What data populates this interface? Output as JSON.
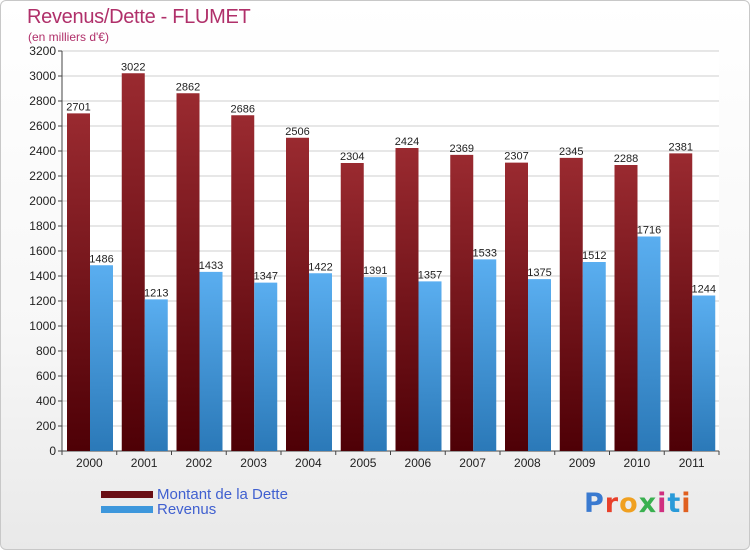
{
  "title": "Revenus/Dette - FLUMET",
  "subtitle": "(en milliers d'€)",
  "logo": {
    "text": "Proxiti",
    "colors": [
      "#3a7ad0",
      "#e8402a",
      "#f0a020",
      "#3ab050",
      "#d03080",
      "#2a9ad8",
      "#e06020"
    ]
  },
  "colors": {
    "dette": "#6a0e14",
    "revenus": "#3d97dc"
  },
  "chart_data": {
    "type": "bar",
    "title": "Revenus/Dette - FLUMET",
    "subtitle": "(en milliers d'€)",
    "categories": [
      "2000",
      "2001",
      "2002",
      "2003",
      "2004",
      "2005",
      "2006",
      "2007",
      "2008",
      "2009",
      "2010",
      "2011"
    ],
    "series": [
      {
        "name": "Montant de la Dette",
        "values": [
          2701,
          3022,
          2862,
          2686,
          2506,
          2304,
          2424,
          2369,
          2307,
          2345,
          2288,
          2381
        ]
      },
      {
        "name": "Revenus",
        "values": [
          1486,
          1213,
          1433,
          1347,
          1422,
          1391,
          1357,
          1533,
          1375,
          1512,
          1716,
          1244
        ]
      }
    ],
    "ylim": [
      0,
      3200
    ],
    "yticks": [
      "0",
      "200",
      "400",
      "600",
      "800",
      "1000",
      "1200",
      "1400",
      "1600",
      "1800",
      "2000",
      "2200",
      "2400",
      "2600",
      "2800",
      "3000",
      "3200"
    ],
    "grid": true,
    "legend": "bottom-left"
  }
}
